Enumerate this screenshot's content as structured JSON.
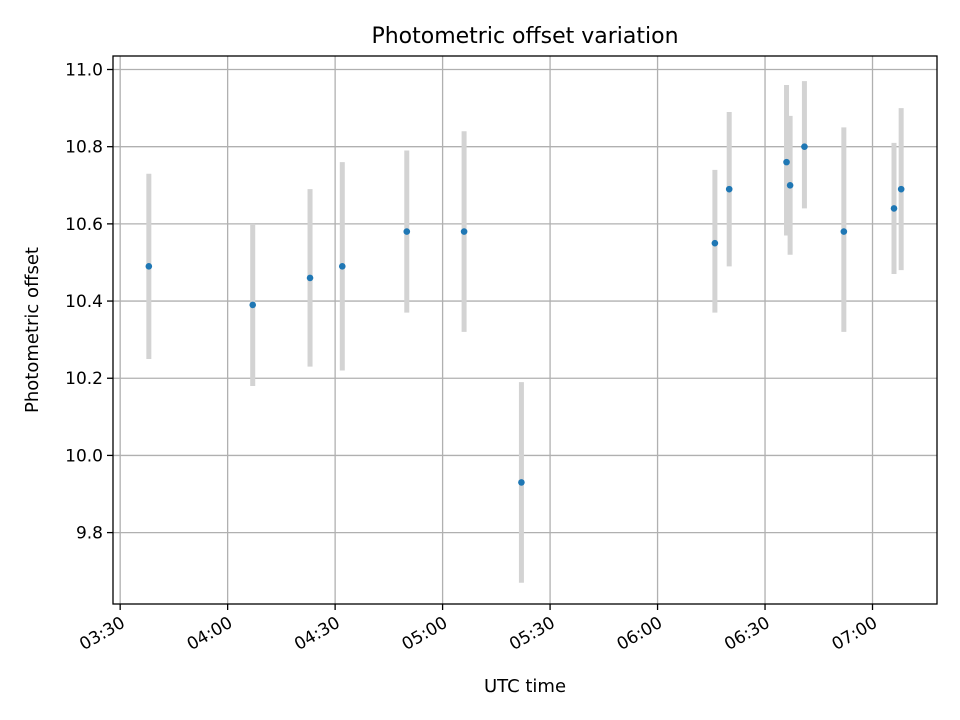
{
  "chart_data": {
    "type": "scatter",
    "title": "Photometric offset variation",
    "xlabel": "UTC time",
    "ylabel": "Photometric offset",
    "x_unit": "time of day (HH:MM)",
    "xlim": [
      "03:28",
      "07:18"
    ],
    "ylim": [
      9.615,
      11.035
    ],
    "x_ticks": [
      "03:30",
      "04:00",
      "04:30",
      "05:00",
      "05:30",
      "06:00",
      "06:30",
      "07:00"
    ],
    "y_ticks": [
      9.8,
      10.0,
      10.2,
      10.4,
      10.6,
      10.8,
      11.0
    ],
    "grid": true,
    "errorbar_color": "#d3d3d3",
    "point_color": "#1f77b4",
    "points": [
      {
        "x": "03:38",
        "y": 10.49,
        "y_low": 10.25,
        "y_high": 10.73
      },
      {
        "x": "04:07",
        "y": 10.39,
        "y_low": 10.18,
        "y_high": 10.6
      },
      {
        "x": "04:23",
        "y": 10.46,
        "y_low": 10.23,
        "y_high": 10.69
      },
      {
        "x": "04:32",
        "y": 10.49,
        "y_low": 10.22,
        "y_high": 10.76
      },
      {
        "x": "04:50",
        "y": 10.58,
        "y_low": 10.37,
        "y_high": 10.79
      },
      {
        "x": "05:06",
        "y": 10.58,
        "y_low": 10.32,
        "y_high": 10.84
      },
      {
        "x": "05:22",
        "y": 9.93,
        "y_low": 9.67,
        "y_high": 10.19
      },
      {
        "x": "06:16",
        "y": 10.55,
        "y_low": 10.37,
        "y_high": 10.74
      },
      {
        "x": "06:20",
        "y": 10.69,
        "y_low": 10.49,
        "y_high": 10.89
      },
      {
        "x": "06:36",
        "y": 10.76,
        "y_low": 10.57,
        "y_high": 10.96
      },
      {
        "x": "06:37",
        "y": 10.7,
        "y_low": 10.52,
        "y_high": 10.88
      },
      {
        "x": "06:41",
        "y": 10.8,
        "y_low": 10.64,
        "y_high": 10.97
      },
      {
        "x": "06:52",
        "y": 10.58,
        "y_low": 10.32,
        "y_high": 10.85
      },
      {
        "x": "07:06",
        "y": 10.64,
        "y_low": 10.47,
        "y_high": 10.81
      },
      {
        "x": "07:08",
        "y": 10.69,
        "y_low": 10.48,
        "y_high": 10.9
      }
    ]
  }
}
